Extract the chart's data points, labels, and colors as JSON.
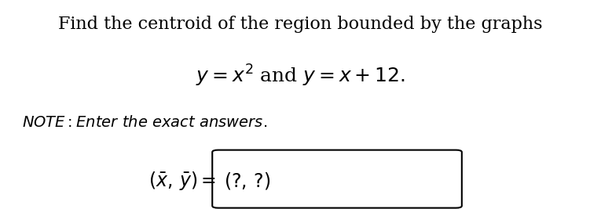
{
  "background_color": "#ffffff",
  "line1": "Find the centroid of the region bounded by the graphs",
  "line2": "$y = x^2$ and $y = x + 12.$",
  "note": "\\textit{NOTE: Enter the exact answers.}",
  "answer_label": "$(\\bar{x}, \\bar{y}) = $",
  "answer_content": "$(?, ?)$",
  "fig_width": 7.65,
  "fig_height": 2.67,
  "dpi": 100
}
